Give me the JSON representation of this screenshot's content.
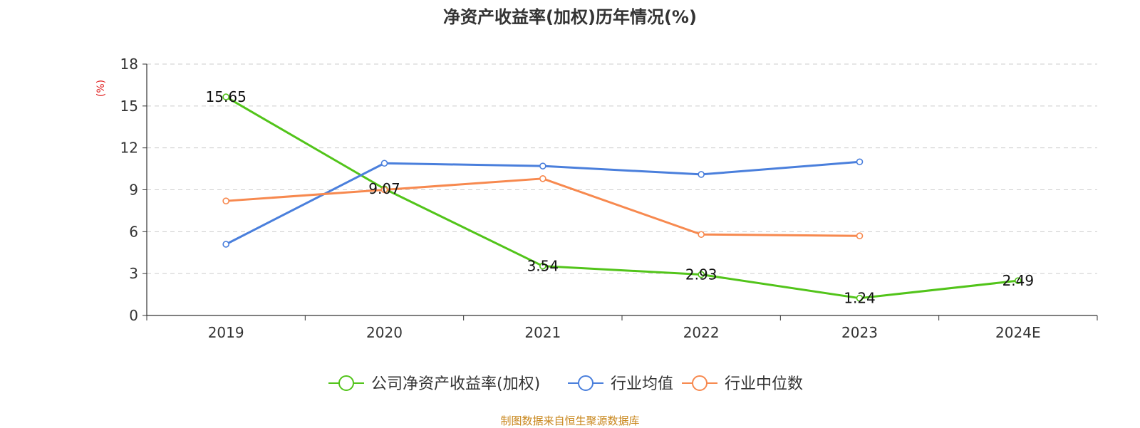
{
  "title": "净资产收益率(加权)历年情况(%)",
  "source_note": "制图数据来自恒生聚源数据库",
  "chart_data": {
    "type": "line",
    "title": "净资产收益率(加权)历年情况(%)",
    "ylabel": "(%)",
    "ylim": [
      0,
      18
    ],
    "yticks": [
      0,
      3,
      6,
      9,
      12,
      15,
      18
    ],
    "grid": true,
    "legend_position": "bottom-center",
    "categories": [
      "2019",
      "2020",
      "2021",
      "2022",
      "2023",
      "2024E"
    ],
    "series": [
      {
        "name": "公司净资产收益率(加权)",
        "color": "#52c41a",
        "values": [
          15.65,
          9.07,
          3.54,
          2.93,
          1.24,
          2.49
        ],
        "show_labels": true
      },
      {
        "name": "行业均值",
        "color": "#4a7fdc",
        "values": [
          5.1,
          10.9,
          10.7,
          10.1,
          11.0,
          null
        ],
        "show_labels": false
      },
      {
        "name": "行业中位数",
        "color": "#f7894f",
        "values": [
          8.2,
          9.0,
          9.8,
          5.8,
          5.7,
          null
        ],
        "show_labels": false
      }
    ]
  }
}
